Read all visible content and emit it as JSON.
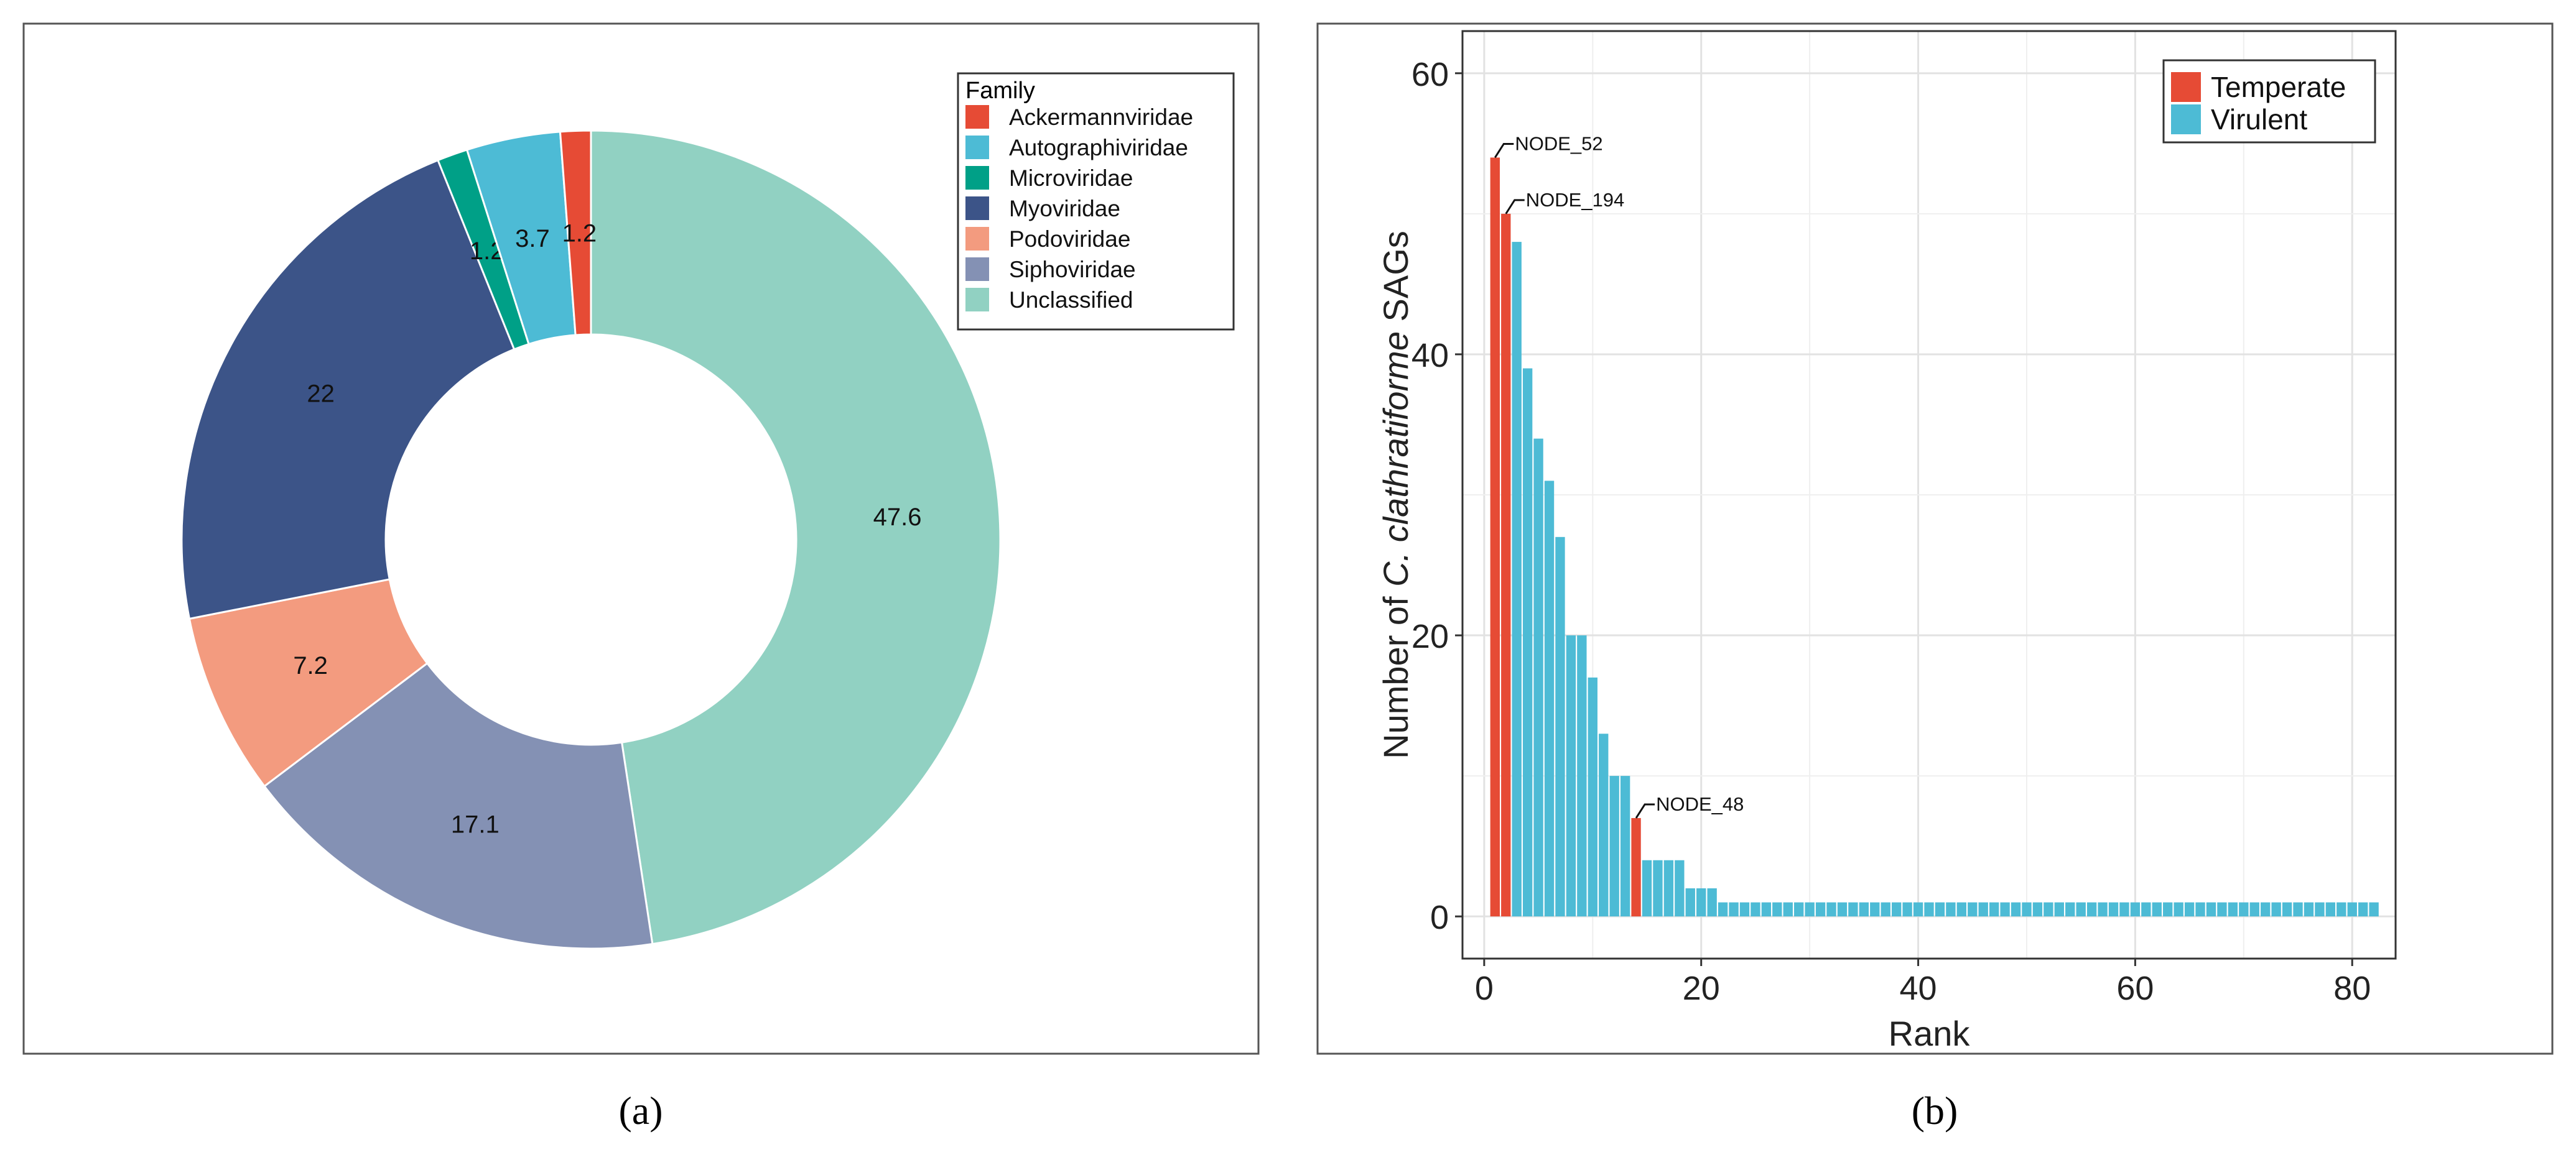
{
  "chart_data": [
    {
      "type": "pie",
      "variant": "donut",
      "panel_label": "(a)",
      "legend_title": "Family",
      "legend_position": "top-right",
      "slices": [
        {
          "label": "Ackermannviridae",
          "value": 1.2,
          "display": "1.2",
          "color": "#E64B35"
        },
        {
          "label": "Autographiviridae",
          "value": 3.7,
          "display": "3.7",
          "color": "#4DBBD5"
        },
        {
          "label": "Microviridae",
          "value": 1.2,
          "display": "1.2",
          "color": "#00A087"
        },
        {
          "label": "Myoviridae",
          "value": 22,
          "display": "22",
          "color": "#3C5488"
        },
        {
          "label": "Podoviridae",
          "value": 7.2,
          "display": "7.2",
          "color": "#F39B7F"
        },
        {
          "label": "Siphoviridae",
          "value": 17.1,
          "display": "17.1",
          "color": "#8491B4"
        },
        {
          "label": "Unclassified",
          "value": 47.6,
          "display": "47.6",
          "color": "#91D1C2"
        }
      ]
    },
    {
      "type": "bar",
      "panel_label": "(b)",
      "xlabel": "Rank",
      "ylabel_parts": [
        "Number of ",
        "C.  clathratiforme",
        " SAGs"
      ],
      "xlim": [
        -2,
        84
      ],
      "ylim": [
        -3,
        63
      ],
      "xticks": [
        0,
        20,
        40,
        60,
        80
      ],
      "yticks": [
        0,
        20,
        40,
        60
      ],
      "grid": true,
      "legend_position": "top-right",
      "series": [
        {
          "name": "Temperate",
          "color": "#E64B35"
        },
        {
          "name": "Virulent",
          "color": "#4DBBD5"
        }
      ],
      "values": [
        54,
        50,
        48,
        39,
        34,
        31,
        27,
        20,
        20,
        17,
        13,
        10,
        10,
        7,
        4,
        4,
        4,
        4,
        2,
        2,
        2,
        1,
        1,
        1,
        1,
        1,
        1,
        1,
        1,
        1,
        1,
        1,
        1,
        1,
        1,
        1,
        1,
        1,
        1,
        1,
        1,
        1,
        1,
        1,
        1,
        1,
        1,
        1,
        1,
        1,
        1,
        1,
        1,
        1,
        1,
        1,
        1,
        1,
        1,
        1,
        1,
        1,
        1,
        1,
        1,
        1,
        1,
        1,
        1,
        1,
        1,
        1,
        1,
        1,
        1,
        1,
        1,
        1,
        1,
        1,
        1,
        1
      ],
      "temperate_ranks": [
        1,
        2,
        14
      ],
      "annotations": [
        {
          "label": "NODE_52",
          "rank": 1,
          "value": 54
        },
        {
          "label": "NODE_194",
          "rank": 2,
          "value": 50
        },
        {
          "label": "NODE_48",
          "rank": 14,
          "value": 7
        }
      ]
    }
  ]
}
